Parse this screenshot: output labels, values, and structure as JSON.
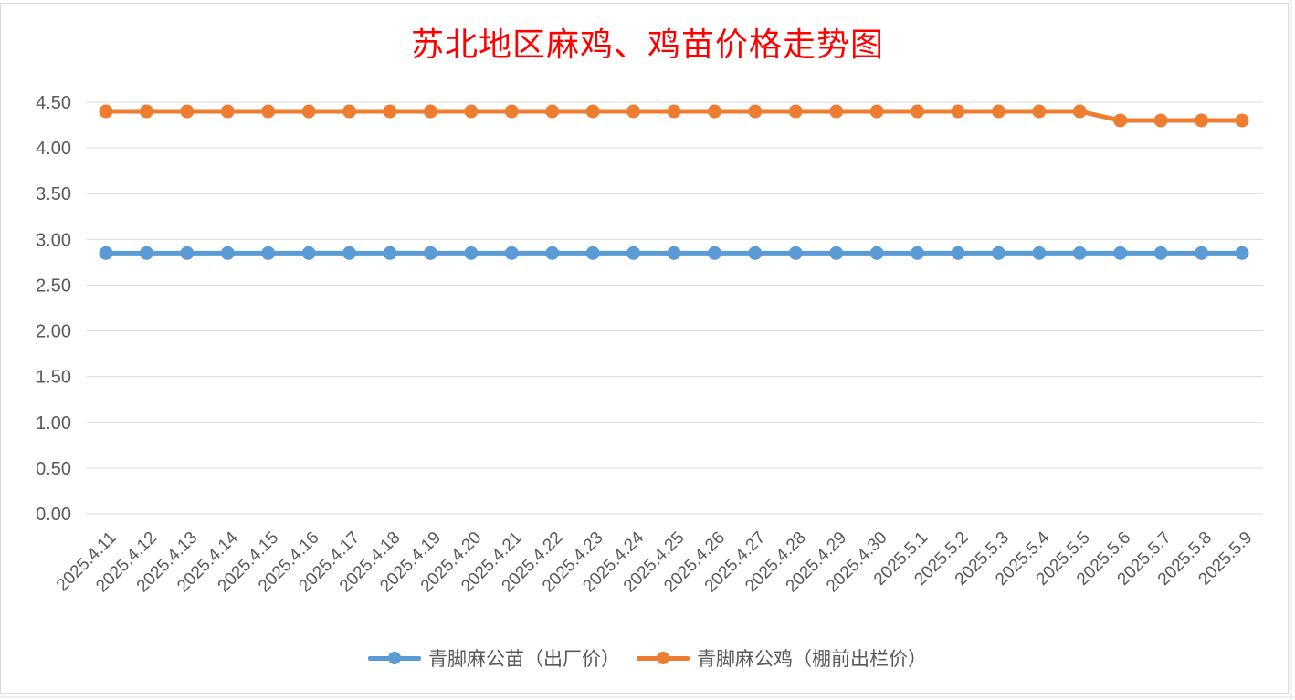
{
  "colors": {
    "title": "#ff0000",
    "series_blue": "#5b9bd5",
    "series_orange": "#ed7d31",
    "gridline": "#d9d9d9",
    "tick_text": "#595959"
  },
  "chart_data": {
    "type": "line",
    "title": "苏北地区麻鸡、鸡苗价格走势图",
    "xlabel": "",
    "ylabel": "",
    "ylim": [
      0,
      4.5
    ],
    "ytick_step": 0.5,
    "grid": true,
    "legend_position": "bottom",
    "categories": [
      "2025.4.11",
      "2025.4.12",
      "2025.4.13",
      "2025.4.14",
      "2025.4.15",
      "2025.4.16",
      "2025.4.17",
      "2025.4.18",
      "2025.4.19",
      "2025.4.20",
      "2025.4.21",
      "2025.4.22",
      "2025.4.23",
      "2025.4.24",
      "2025.4.25",
      "2025.4.26",
      "2025.4.27",
      "2025.4.28",
      "2025.4.29",
      "2025.4.30",
      "2025.5.1",
      "2025.5.2",
      "2025.5.3",
      "2025.5.4",
      "2025.5.5",
      "2025.5.6",
      "2025.5.7",
      "2025.5.8",
      "2025.5.9"
    ],
    "yticks": [
      "0.00",
      "0.50",
      "1.00",
      "1.50",
      "2.00",
      "2.50",
      "3.00",
      "3.50",
      "4.00",
      "4.50"
    ],
    "series": [
      {
        "name": "青脚麻公苗（出厂价）",
        "color": "#5b9bd5",
        "values": [
          2.85,
          2.85,
          2.85,
          2.85,
          2.85,
          2.85,
          2.85,
          2.85,
          2.85,
          2.85,
          2.85,
          2.85,
          2.85,
          2.85,
          2.85,
          2.85,
          2.85,
          2.85,
          2.85,
          2.85,
          2.85,
          2.85,
          2.85,
          2.85,
          2.85,
          2.85,
          2.85,
          2.85,
          2.85
        ]
      },
      {
        "name": "青脚麻公鸡（棚前出栏价）",
        "color": "#ed7d31",
        "values": [
          4.4,
          4.4,
          4.4,
          4.4,
          4.4,
          4.4,
          4.4,
          4.4,
          4.4,
          4.4,
          4.4,
          4.4,
          4.4,
          4.4,
          4.4,
          4.4,
          4.4,
          4.4,
          4.4,
          4.4,
          4.4,
          4.4,
          4.4,
          4.4,
          4.4,
          4.3,
          4.3,
          4.3,
          4.3
        ]
      }
    ]
  }
}
